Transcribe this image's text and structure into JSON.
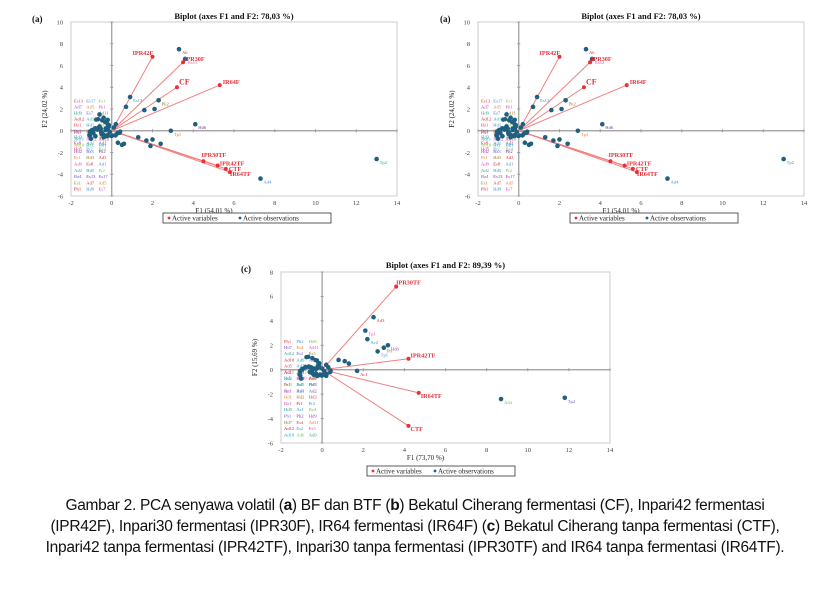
{
  "caption": {
    "parts": [
      {
        "t": "Gambar 2. PCA senyawa volatil (",
        "b": false
      },
      {
        "t": "a",
        "b": true
      },
      {
        "t": ") BF dan BTF (",
        "b": false
      },
      {
        "t": "b",
        "b": true
      },
      {
        "t": ") Bekatul Ciherang fermentasi (CF), Inpari42 fermentasi (IPR42F), Inpari30 fermentasi (IPR30F), IR64 fermentasi (IR64F) (",
        "b": false
      },
      {
        "t": "c",
        "b": true
      },
      {
        "t": ") Bekatul Ciherang tanpa fermentasi (CTF), Inpari42 tanpa fermentasi (IPR42TF), Inpari30 tanpa fermentasi (IPR30TF) and IR64 tanpa fermentasi (IR64TF).",
        "b": false
      }
    ]
  },
  "colors": {
    "variable": "#e8303a",
    "variable_line": "#f08080",
    "observation": "#1f5f7f",
    "axis": "#999999",
    "frame": "#cccccc"
  },
  "chart_data": [
    {
      "id": "chart-a-left",
      "panel_label": "(a)",
      "type": "scatter",
      "subtype": "biplot",
      "title": "Biplot (axes F1 and F2: 78,03 %)",
      "xlabel": "F1 (54,01 %)",
      "ylabel": "F2 (24,02 %)",
      "xlim": [
        -2,
        14
      ],
      "ylim": [
        -6,
        10
      ],
      "xticks": [
        -2,
        0,
        2,
        4,
        6,
        8,
        10,
        12,
        14
      ],
      "yticks": [
        -6,
        -4,
        -2,
        0,
        2,
        4,
        6,
        8,
        10
      ],
      "legend": {
        "position": "bottom",
        "entries": [
          "Active variables",
          "Active observations"
        ]
      },
      "variables": [
        {
          "name": "IPR42F",
          "x": 2.0,
          "y": 6.8
        },
        {
          "name": "IPR30F",
          "x": 3.5,
          "y": 6.3
        },
        {
          "name": "CF",
          "x": 3.2,
          "y": 4.0
        },
        {
          "name": "IR64F",
          "x": 5.3,
          "y": 4.2
        },
        {
          "name": "IPR30TF",
          "x": 4.5,
          "y": -2.8
        },
        {
          "name": "IPR42TF",
          "x": 5.2,
          "y": -3.2
        },
        {
          "name": "CTF",
          "x": 5.6,
          "y": -3.5
        },
        {
          "name": "IR64TF",
          "x": 5.8,
          "y": -3.8
        }
      ],
      "observations": [
        {
          "label": "Ab",
          "x": 3.3,
          "y": 7.5
        },
        {
          "label": "Es11",
          "x": 3.6,
          "y": 6.6
        },
        {
          "label": "Es13",
          "x": 0.9,
          "y": 3.1
        },
        {
          "label": "",
          "x": 0.7,
          "y": 2.2
        },
        {
          "label": "Ph2",
          "x": 2.3,
          "y": 2.8
        },
        {
          "label": "",
          "x": 1.6,
          "y": 1.9
        },
        {
          "label": "",
          "x": 2.1,
          "y": 2.0
        },
        {
          "label": "Hd6",
          "x": 4.1,
          "y": 0.6
        },
        {
          "label": "Tp1",
          "x": 2.9,
          "y": 0.0
        },
        {
          "label": "",
          "x": 1.3,
          "y": -0.6
        },
        {
          "label": "",
          "x": 1.7,
          "y": -0.9
        },
        {
          "label": "",
          "x": 2.0,
          "y": -0.8
        },
        {
          "label": "",
          "x": 2.4,
          "y": -1.2
        },
        {
          "label": "",
          "x": 1.9,
          "y": -1.4
        },
        {
          "label": "",
          "x": 0.3,
          "y": -1.1
        },
        {
          "label": "",
          "x": 0.5,
          "y": -1.3
        },
        {
          "label": "",
          "x": 0.6,
          "y": -1.2
        },
        {
          "label": "Ad4",
          "x": 7.3,
          "y": -4.4
        },
        {
          "label": "Tp2",
          "x": 13.0,
          "y": -2.6
        },
        {
          "label": "",
          "x": -0.4,
          "y": 1.2
        },
        {
          "label": "",
          "x": -0.6,
          "y": 1.5
        },
        {
          "label": "",
          "x": -0.2,
          "y": 1.0
        },
        {
          "label": "",
          "x": 0.2,
          "y": 0.6
        },
        {
          "label": "",
          "x": -0.9,
          "y": -0.2
        },
        {
          "label": "",
          "x": -0.7,
          "y": 0.1
        },
        {
          "label": "",
          "x": -0.5,
          "y": -0.3
        },
        {
          "label": "",
          "x": -0.3,
          "y": 0.2
        },
        {
          "label": "",
          "x": -0.8,
          "y": -0.5
        },
        {
          "label": "",
          "x": -0.4,
          "y": -0.6
        },
        {
          "label": "",
          "x": -0.1,
          "y": -0.1
        },
        {
          "label": "",
          "x": 0.1,
          "y": 0.3
        },
        {
          "label": "",
          "x": -0.6,
          "y": 0.4
        },
        {
          "label": "",
          "x": -1.0,
          "y": 0.0
        },
        {
          "label": "",
          "x": -0.2,
          "y": -0.4
        },
        {
          "label": "",
          "x": 0.3,
          "y": -0.2
        }
      ],
      "cluster_labels": [
        "Es13",
        "Es17",
        "Es1",
        "Ad7",
        "Ad5",
        "Ph1",
        "Hd9",
        "Es7",
        "Ad11",
        "Ad12",
        "Ad13",
        "Ad10",
        "Bz1",
        "Hd1",
        "Hd2",
        "Bz3",
        "Ph2",
        "Pr1",
        "Hd3",
        "Ad3",
        "Ad9",
        "Es8",
        "Ad1",
        "Ad2",
        "Hd5",
        "Pr2",
        "Bz4"
      ]
    },
    {
      "id": "chart-a-right",
      "panel_label": "(a)",
      "type": "scatter",
      "subtype": "biplot",
      "title": "Biplot (axes F1 and F2: 78,03 %)",
      "xlabel": "F1 (54,01 %)",
      "ylabel": "F2 (24,02 %)",
      "xlim": [
        -2,
        14
      ],
      "ylim": [
        -6,
        10
      ],
      "xticks": [
        -2,
        0,
        2,
        4,
        6,
        8,
        10,
        12,
        14
      ],
      "yticks": [
        -6,
        -4,
        -2,
        0,
        2,
        4,
        6,
        8,
        10
      ],
      "legend": {
        "position": "bottom",
        "entries": [
          "Active variables",
          "Active observations"
        ]
      },
      "variables": [
        {
          "name": "IPR42F",
          "x": 2.0,
          "y": 6.8
        },
        {
          "name": "IPR30F",
          "x": 3.5,
          "y": 6.3
        },
        {
          "name": "CF",
          "x": 3.2,
          "y": 4.0
        },
        {
          "name": "IR64F",
          "x": 5.3,
          "y": 4.2
        },
        {
          "name": "IPR30TF",
          "x": 4.5,
          "y": -2.8
        },
        {
          "name": "IPR42TF",
          "x": 5.2,
          "y": -3.2
        },
        {
          "name": "CTF",
          "x": 5.6,
          "y": -3.5
        },
        {
          "name": "IR64TF",
          "x": 5.8,
          "y": -3.8
        }
      ],
      "observations": [
        {
          "label": "Ab",
          "x": 3.3,
          "y": 7.5
        },
        {
          "label": "Es12",
          "x": 3.6,
          "y": 6.6
        },
        {
          "label": "Es13",
          "x": 0.9,
          "y": 3.1
        },
        {
          "label": "",
          "x": 0.7,
          "y": 2.2
        },
        {
          "label": "Ph2",
          "x": 2.3,
          "y": 2.8
        },
        {
          "label": "",
          "x": 1.6,
          "y": 1.9
        },
        {
          "label": "",
          "x": 2.1,
          "y": 2.0
        },
        {
          "label": "Hd6",
          "x": 4.1,
          "y": 0.6
        },
        {
          "label": "Tp1",
          "x": 2.9,
          "y": 0.0
        },
        {
          "label": "",
          "x": 1.3,
          "y": -0.6
        },
        {
          "label": "",
          "x": 1.7,
          "y": -0.9
        },
        {
          "label": "",
          "x": 2.0,
          "y": -0.8
        },
        {
          "label": "",
          "x": 2.4,
          "y": -1.2
        },
        {
          "label": "",
          "x": 1.9,
          "y": -1.4
        },
        {
          "label": "",
          "x": 0.3,
          "y": -1.1
        },
        {
          "label": "",
          "x": 0.5,
          "y": -1.3
        },
        {
          "label": "",
          "x": 0.6,
          "y": -1.2
        },
        {
          "label": "Ad4",
          "x": 7.3,
          "y": -4.4
        },
        {
          "label": "Tp2",
          "x": 13.0,
          "y": -2.6
        },
        {
          "label": "",
          "x": -0.4,
          "y": 1.2
        },
        {
          "label": "",
          "x": -0.6,
          "y": 1.5
        },
        {
          "label": "",
          "x": -0.2,
          "y": 1.0
        },
        {
          "label": "",
          "x": 0.2,
          "y": 0.6
        },
        {
          "label": "",
          "x": -0.9,
          "y": -0.2
        },
        {
          "label": "",
          "x": -0.7,
          "y": 0.1
        },
        {
          "label": "",
          "x": -0.5,
          "y": -0.3
        },
        {
          "label": "",
          "x": -0.3,
          "y": 0.2
        },
        {
          "label": "",
          "x": -0.8,
          "y": -0.5
        },
        {
          "label": "",
          "x": -0.4,
          "y": -0.6
        },
        {
          "label": "",
          "x": -0.1,
          "y": -0.1
        },
        {
          "label": "",
          "x": 0.1,
          "y": 0.3
        },
        {
          "label": "",
          "x": -0.6,
          "y": 0.4
        },
        {
          "label": "",
          "x": -1.0,
          "y": 0.0
        },
        {
          "label": "",
          "x": -0.2,
          "y": -0.4
        },
        {
          "label": "",
          "x": 0.3,
          "y": -0.2
        }
      ],
      "cluster_labels": [
        "Es13",
        "Es17",
        "Es1",
        "Ad7",
        "Ad5",
        "Ph1",
        "Hd9",
        "Es7",
        "Ad11",
        "Ad12",
        "Ad13",
        "Ad10",
        "Bz1",
        "Hd1",
        "Hd2",
        "Bz3",
        "Ph2",
        "Pr1",
        "Hd3",
        "Ad3",
        "Ad9",
        "Es8",
        "Ad1",
        "Ad2",
        "Hd5",
        "Pr2",
        "Bz4"
      ]
    },
    {
      "id": "chart-c",
      "panel_label": "(c)",
      "type": "scatter",
      "subtype": "biplot",
      "title": "Biplot (axes F1 and F2: 89,39 %)",
      "xlabel": "F1 (73,70 %)",
      "ylabel": "F2 (15,69 %)",
      "xlim": [
        -2,
        14
      ],
      "ylim": [
        -6,
        8
      ],
      "xticks": [
        -2,
        0,
        2,
        4,
        6,
        8,
        10,
        12,
        14
      ],
      "yticks": [
        -6,
        -4,
        -2,
        0,
        2,
        4,
        6,
        8
      ],
      "legend": {
        "position": "bottom",
        "entries": [
          "Active variables",
          "Active observations"
        ]
      },
      "variables": [
        {
          "name": "IPR30TF",
          "x": 3.6,
          "y": 6.8
        },
        {
          "name": "IPR42TF",
          "x": 4.2,
          "y": 0.9
        },
        {
          "name": "IR64TF",
          "x": 4.7,
          "y": -1.9
        },
        {
          "name": "CTF",
          "x": 4.2,
          "y": -4.6
        }
      ],
      "observations": [
        {
          "label": "Ad3",
          "x": 2.5,
          "y": 4.3
        },
        {
          "label": "Tp1",
          "x": 2.1,
          "y": 3.2
        },
        {
          "label": "Ac2",
          "x": 2.2,
          "y": 2.5
        },
        {
          "label": "Hd6",
          "x": 3.2,
          "y": 2.0
        },
        {
          "label": "Ph",
          "x": 3.0,
          "y": 1.8
        },
        {
          "label": "Tp1",
          "x": 2.7,
          "y": 1.5
        },
        {
          "label": "",
          "x": 0.8,
          "y": 0.8
        },
        {
          "label": "",
          "x": 1.1,
          "y": 0.7
        },
        {
          "label": "",
          "x": 1.3,
          "y": 0.5
        },
        {
          "label": "Ac1",
          "x": 1.7,
          "y": -0.1
        },
        {
          "label": "Ad4",
          "x": 8.7,
          "y": -2.4
        },
        {
          "label": "Tp2",
          "x": 11.8,
          "y": -2.3
        },
        {
          "label": "",
          "x": -0.6,
          "y": -0.2
        },
        {
          "label": "",
          "x": -0.4,
          "y": 0.1
        },
        {
          "label": "",
          "x": -0.2,
          "y": 0.3
        },
        {
          "label": "",
          "x": 0.0,
          "y": 0.1
        },
        {
          "label": "",
          "x": 0.2,
          "y": 0.4
        },
        {
          "label": "",
          "x": -0.3,
          "y": -0.3
        },
        {
          "label": "",
          "x": -0.1,
          "y": -0.4
        },
        {
          "label": "",
          "x": 0.1,
          "y": -0.1
        },
        {
          "label": "",
          "x": -0.5,
          "y": 0.0
        },
        {
          "label": "",
          "x": 0.3,
          "y": 0.2
        },
        {
          "label": "",
          "x": 0.2,
          "y": -0.5
        }
      ],
      "cluster_labels": [
        "Ph1",
        "Ph2",
        "Hd9",
        "Hd7",
        "Es4",
        "Ad11",
        "Ad12",
        "Es2",
        "Es5",
        "Ad10",
        "Ad6",
        "Ad9",
        "Ad5",
        "Ad7",
        "Bz1",
        "Ad1",
        "Ad2",
        "Hd1",
        "Hd2",
        "Hd3",
        "Bz3",
        "Pr1",
        "Pr2",
        "Hd5",
        "Ar1",
        "Bz4"
      ]
    }
  ]
}
